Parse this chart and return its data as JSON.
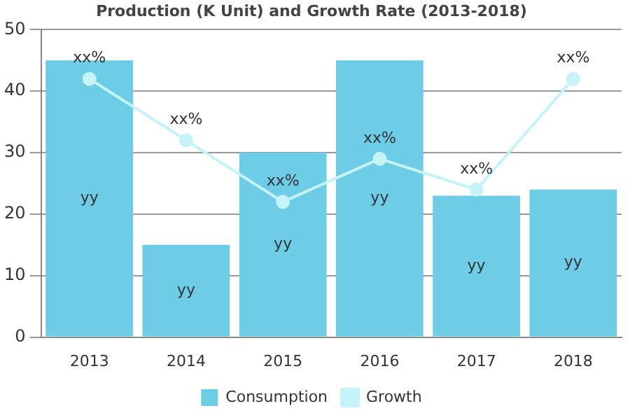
{
  "chart_data": {
    "type": "bar",
    "title": "Production (K Unit) and Growth Rate (2013-2018)",
    "categories": [
      "2013",
      "2014",
      "2015",
      "2016",
      "2017",
      "2018"
    ],
    "series": [
      {
        "name": "Consumption",
        "color": "#6ecde6",
        "values": [
          45,
          15,
          30,
          45,
          23,
          24
        ],
        "value_labels": [
          "yy",
          "yy",
          "yy",
          "yy",
          "yy",
          "yy"
        ]
      },
      {
        "name": "Growth",
        "type": "line",
        "color": "#c4f3f8",
        "values": [
          42,
          32,
          22,
          29,
          24,
          42
        ],
        "value_labels": [
          "xx%",
          "xx%",
          "xx%",
          "xx%",
          "xx%",
          "xx%"
        ]
      }
    ],
    "ylim": [
      0,
      50
    ],
    "yticks": [
      0,
      10,
      20,
      30,
      40,
      50
    ],
    "grid": "y",
    "legend": "bottom",
    "marker": "circle"
  }
}
